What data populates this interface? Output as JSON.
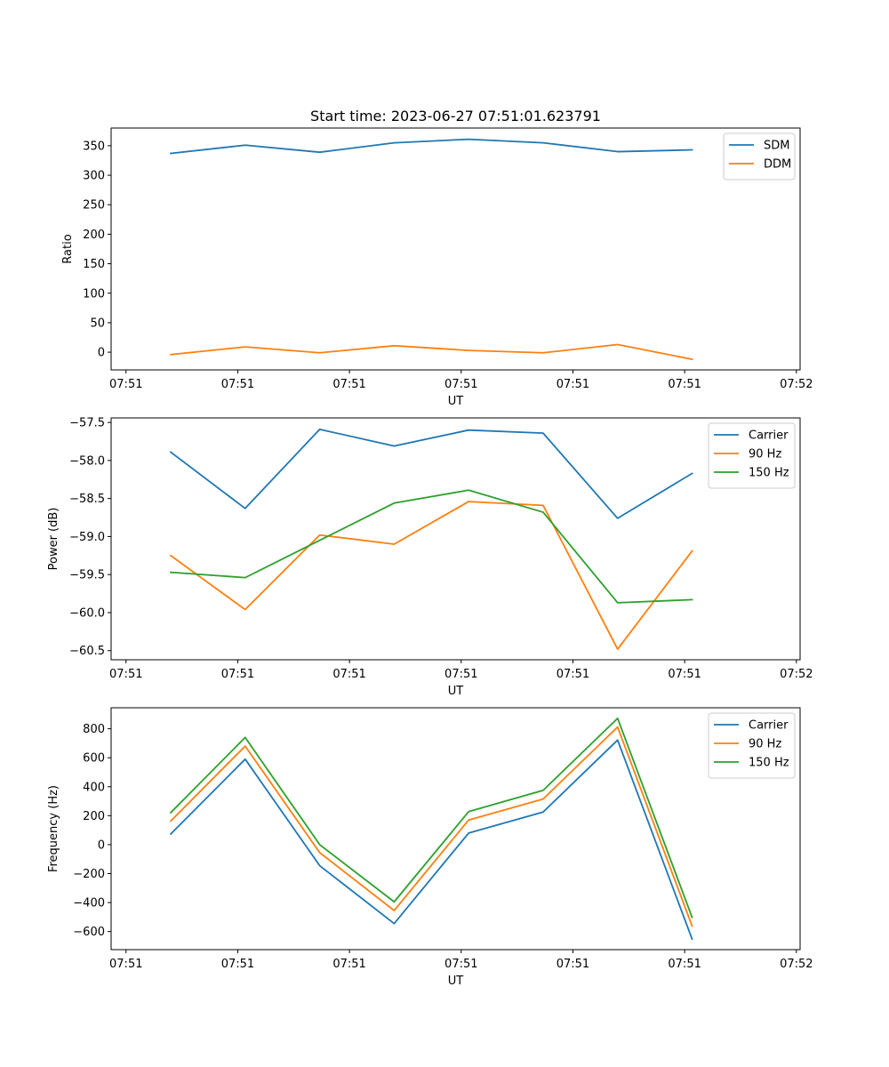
{
  "figure": {
    "title": "Start time: 2023-06-27 07:51:01.623791"
  },
  "chart_data": [
    {
      "type": "line",
      "title": "Start time: 2023-06-27 07:51:01.623791",
      "xlabel": "UT",
      "ylabel": "Ratio",
      "x_tick_labels": [
        "07:51",
        "07:51",
        "07:51",
        "07:51",
        "07:51",
        "07:51",
        "07:52"
      ],
      "y_ticks": [
        0,
        50,
        100,
        150,
        200,
        250,
        300,
        350
      ],
      "ylim": [
        -30,
        380
      ],
      "x": [
        1,
        2,
        3,
        4,
        5,
        6,
        7,
        8
      ],
      "xlim": [
        0.2,
        9.45
      ],
      "x_tick_positions": [
        0.4,
        1.9,
        3.4,
        4.9,
        6.4,
        7.9,
        9.4
      ],
      "legend_position": "top-right",
      "series": [
        {
          "name": "SDM",
          "color": "#1f77b4",
          "values": [
            337,
            351,
            339,
            355,
            361,
            355,
            340,
            343
          ]
        },
        {
          "name": "DDM",
          "color": "#ff7f0e",
          "values": [
            -4,
            9,
            -1,
            11,
            3,
            -1,
            13,
            -12
          ]
        }
      ]
    },
    {
      "type": "line",
      "title": "",
      "xlabel": "UT",
      "ylabel": "Power (dB)",
      "x_tick_labels": [
        "07:51",
        "07:51",
        "07:51",
        "07:51",
        "07:51",
        "07:51",
        "07:52"
      ],
      "y_ticks": [
        -60.5,
        -60.0,
        -59.5,
        -59.0,
        -58.5,
        -58.0,
        -57.5
      ],
      "y_tick_labels": [
        "−60.5",
        "−60.0",
        "−59.5",
        "−59.0",
        "−58.5",
        "−58.0",
        "−57.5"
      ],
      "ylim": [
        -60.62,
        -57.44
      ],
      "x": [
        1,
        2,
        3,
        4,
        5,
        6,
        7,
        8
      ],
      "xlim": [
        0.2,
        9.45
      ],
      "x_tick_positions": [
        0.4,
        1.9,
        3.4,
        4.9,
        6.4,
        7.9,
        9.4
      ],
      "legend_position": "top-right",
      "series": [
        {
          "name": "Carrier",
          "color": "#1f77b4",
          "values": [
            -57.89,
            -58.63,
            -57.59,
            -57.81,
            -57.6,
            -57.64,
            -58.76,
            -58.17
          ]
        },
        {
          "name": "90 Hz",
          "color": "#ff7f0e",
          "values": [
            -59.25,
            -59.96,
            -58.98,
            -59.1,
            -58.54,
            -58.59,
            -60.48,
            -59.19
          ]
        },
        {
          "name": "150 Hz",
          "color": "#2ca02c",
          "values": [
            -59.47,
            -59.54,
            -59.05,
            -58.56,
            -58.39,
            -58.68,
            -59.87,
            -59.83
          ]
        }
      ]
    },
    {
      "type": "line",
      "title": "",
      "xlabel": "UT",
      "ylabel": "Frequency (Hz)",
      "x_tick_labels": [
        "07:51",
        "07:51",
        "07:51",
        "07:51",
        "07:51",
        "07:51",
        "07:52"
      ],
      "y_ticks": [
        -600,
        -400,
        -200,
        0,
        200,
        400,
        600,
        800
      ],
      "y_tick_labels": [
        "−600",
        "−400",
        "−200",
        "0",
        "200",
        "400",
        "600",
        "800"
      ],
      "ylim": [
        -725,
        945
      ],
      "x": [
        1,
        2,
        3,
        4,
        5,
        6,
        7,
        8
      ],
      "xlim": [
        0.2,
        9.45
      ],
      "x_tick_positions": [
        0.4,
        1.9,
        3.4,
        4.9,
        6.4,
        7.9,
        9.4
      ],
      "legend_position": "top-right",
      "series": [
        {
          "name": "Carrier",
          "color": "#1f77b4",
          "values": [
            73,
            590,
            -145,
            -545,
            80,
            225,
            722,
            -652
          ]
        },
        {
          "name": "90 Hz",
          "color": "#ff7f0e",
          "values": [
            163,
            680,
            -55,
            -455,
            170,
            315,
            812,
            -562
          ]
        },
        {
          "name": "150 Hz",
          "color": "#2ca02c",
          "values": [
            221,
            740,
            0,
            -395,
            228,
            375,
            872,
            -502
          ]
        }
      ]
    }
  ]
}
